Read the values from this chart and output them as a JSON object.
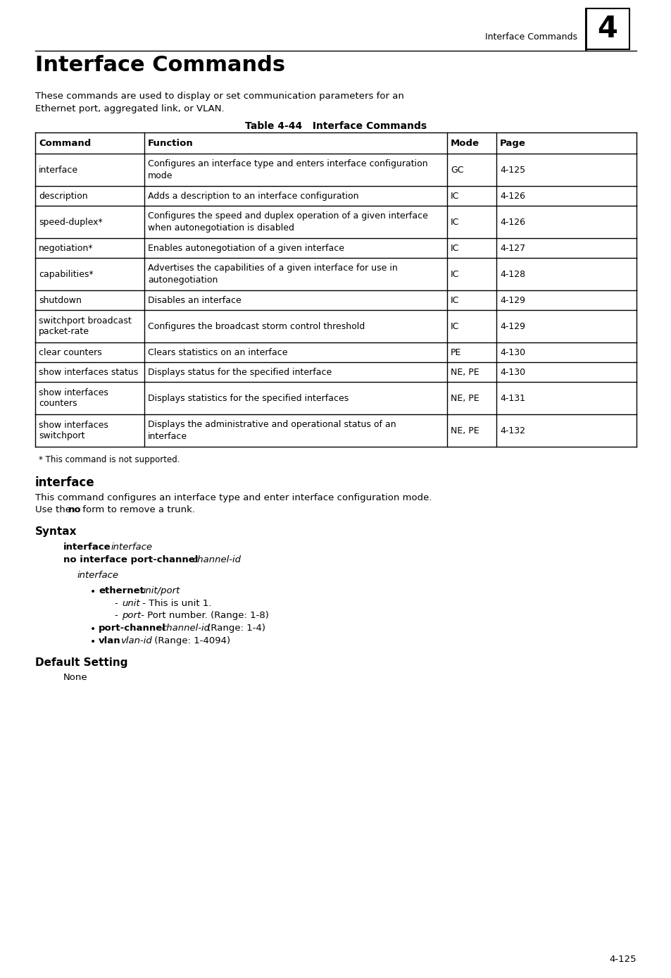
{
  "page_bg": "#ffffff",
  "header_text": "Interface Commands",
  "header_num": "4",
  "title": "Interface Commands",
  "intro_line1": "These commands are used to display or set communication parameters for an",
  "intro_line2": "Ethernet port, aggregated link, or VLAN.",
  "table_title": "Table 4-44   Interface Commands",
  "table_headers": [
    "Command",
    "Function",
    "Mode",
    "Page"
  ],
  "table_rows": [
    [
      "interface",
      "Configures an interface type and enters interface configuration\nmode",
      "GC",
      "4-125"
    ],
    [
      "description",
      "Adds a description to an interface configuration",
      "IC",
      "4-126"
    ],
    [
      "speed-duplex*",
      "Configures the speed and duplex operation of a given interface\nwhen autonegotiation is disabled",
      "IC",
      "4-126"
    ],
    [
      "negotiation*",
      "Enables autonegotiation of a given interface",
      "IC",
      "4-127"
    ],
    [
      "capabilities*",
      "Advertises the capabilities of a given interface for use in\nautonegotiation",
      "IC",
      "4-128"
    ],
    [
      "shutdown",
      "Disables an interface",
      "IC",
      "4-129"
    ],
    [
      "switchport broadcast\npacket-rate",
      "Configures the broadcast storm control threshold",
      "IC",
      "4-129"
    ],
    [
      "clear counters",
      "Clears statistics on an interface",
      "PE",
      "4-130"
    ],
    [
      "show interfaces status",
      "Displays status for the specified interface",
      "NE, PE",
      "4-130"
    ],
    [
      "show interfaces\ncounters",
      "Displays statistics for the specified interfaces",
      "NE, PE",
      "4-131"
    ],
    [
      "show interfaces\nswitchport",
      "Displays the administrative and operational status of an\ninterface",
      "NE, PE",
      "4-132"
    ]
  ],
  "footnote": "* This command is not supported.",
  "section_title": "interface",
  "section_desc1": "This command configures an interface type and enter interface configuration mode.",
  "section_desc2_pre": "Use the ",
  "section_desc2_bold": "no",
  "section_desc2_post": " form to remove a trunk.",
  "syntax_title": "Syntax",
  "syntax_line1_bold": "interface",
  "syntax_line1_italic": "interface",
  "syntax_line2_bold": "no interface port-channel",
  "syntax_line2_italic": "channel-id",
  "syntax_sub": "interface",
  "bullet1_bold": "ethernet",
  "bullet1_italic": "unit/port",
  "sub_bullet1_italic": "unit",
  "sub_bullet1_rest": " - This is unit 1.",
  "sub_bullet2_italic": "port",
  "sub_bullet2_rest": " - Port number. (Range: 1-8)",
  "bullet2_bold": "port-channel",
  "bullet2_italic": "channel-id",
  "bullet2_rest": " (Range: 1-4)",
  "bullet3_bold": "vlan",
  "bullet3_italic": "vlan-id",
  "bullet3_rest": " (Range: 1-4094)",
  "default_title": "Default Setting",
  "default_value": "None",
  "page_num": "4-125"
}
